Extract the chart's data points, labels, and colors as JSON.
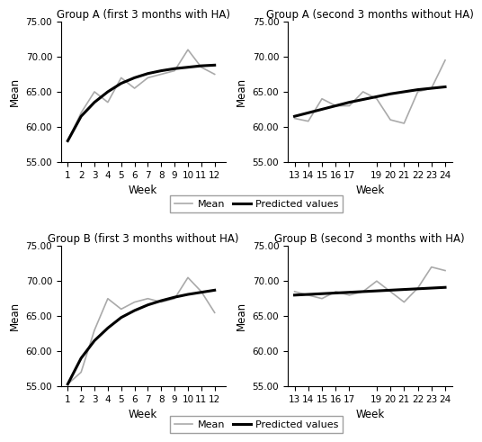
{
  "titles": [
    "Group A (first 3 months with HA)",
    "Group A (second 3 months without HA)",
    "Group B (first 3 months without HA)",
    "Group B (second 3 months with HA)"
  ],
  "xlabel": "Week",
  "ylabel": "Mean",
  "ylim": [
    55.0,
    75.0
  ],
  "yticks": [
    55.0,
    60.0,
    65.0,
    70.0,
    75.0
  ],
  "A1_weeks": [
    1,
    2,
    3,
    4,
    5,
    6,
    7,
    8,
    9,
    10,
    11,
    12
  ],
  "A1_mean": [
    58.0,
    62.0,
    65.0,
    63.5,
    67.0,
    65.5,
    67.0,
    67.5,
    68.0,
    71.0,
    68.5,
    67.5
  ],
  "A1_pred_weeks": [
    1,
    2,
    3,
    4,
    5,
    6,
    7,
    8,
    9,
    10,
    11,
    12
  ],
  "A1_pred": [
    58.0,
    61.5,
    63.5,
    65.0,
    66.2,
    67.0,
    67.6,
    68.0,
    68.3,
    68.5,
    68.7,
    68.8
  ],
  "A2_weeks": [
    13,
    14,
    15,
    16,
    17,
    18,
    19,
    20,
    21,
    22,
    23,
    24
  ],
  "A2_mean": [
    61.2,
    60.8,
    64.0,
    63.0,
    63.0,
    65.0,
    64.0,
    61.0,
    60.5,
    65.0,
    65.5,
    69.5
  ],
  "A2_pred_weeks": [
    13,
    14,
    15,
    16,
    17,
    18,
    19,
    20,
    21,
    22,
    23,
    24
  ],
  "A2_pred": [
    61.5,
    62.0,
    62.5,
    63.0,
    63.5,
    63.9,
    64.3,
    64.7,
    65.0,
    65.3,
    65.5,
    65.7
  ],
  "B1_weeks": [
    1,
    2,
    3,
    4,
    5,
    6,
    7,
    8,
    9,
    10,
    11,
    12
  ],
  "B1_mean": [
    55.3,
    57.0,
    63.0,
    67.5,
    66.0,
    67.0,
    67.5,
    67.0,
    67.5,
    70.5,
    68.5,
    65.5
  ],
  "B1_pred_weeks": [
    1,
    2,
    3,
    4,
    5,
    6,
    7,
    8,
    9,
    10,
    11,
    12
  ],
  "B1_pred": [
    55.3,
    59.0,
    61.5,
    63.3,
    64.8,
    65.8,
    66.6,
    67.2,
    67.7,
    68.1,
    68.4,
    68.7
  ],
  "B2_weeks": [
    13,
    14,
    15,
    16,
    17,
    18,
    19,
    20,
    21,
    22,
    23,
    24
  ],
  "B2_mean": [
    68.5,
    68.0,
    67.5,
    68.5,
    68.0,
    68.5,
    70.0,
    68.5,
    67.0,
    69.0,
    72.0,
    71.5
  ],
  "B2_pred_weeks": [
    13,
    14,
    15,
    16,
    17,
    18,
    19,
    20,
    21,
    22,
    23,
    24
  ],
  "B2_pred": [
    68.0,
    68.1,
    68.2,
    68.3,
    68.4,
    68.5,
    68.6,
    68.7,
    68.8,
    68.9,
    69.0,
    69.1
  ],
  "mean_color": "#aaaaaa",
  "pred_color": "#000000",
  "mean_lw": 1.2,
  "pred_lw": 2.2,
  "legend_labels": [
    "Mean",
    "Predicted values"
  ],
  "title_fontsize": 8.5,
  "label_fontsize": 8.5,
  "tick_fontsize": 7.5,
  "legend_fontsize": 8,
  "xticks_1_12": [
    1,
    2,
    3,
    4,
    5,
    6,
    7,
    8,
    9,
    10,
    11,
    12
  ],
  "xticks_13_24": [
    13,
    14,
    15,
    16,
    17,
    19,
    20,
    21,
    22,
    23,
    24
  ],
  "xlim_1_12": [
    0.5,
    12.8
  ],
  "xlim_13_24": [
    12.5,
    24.5
  ]
}
